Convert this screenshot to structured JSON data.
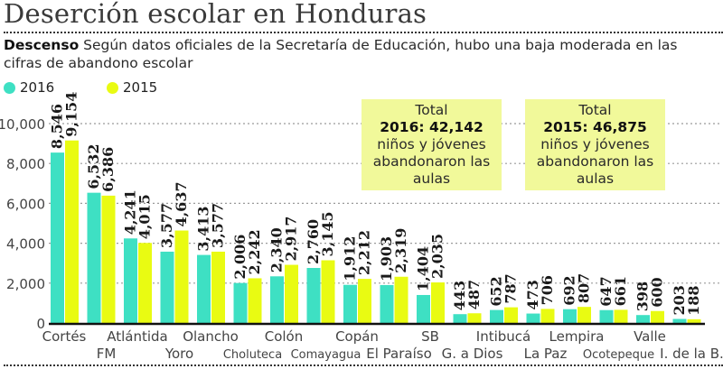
{
  "header": {
    "title": "Deserción escolar en Honduras",
    "subtitle_bold": "Descenso",
    "subtitle_text": " Según datos oficiales de la Secretaría de Educación, hubo una baja moderada en las cifras de abandono escolar"
  },
  "legend": [
    {
      "label": "2016",
      "color": "#3ee0c3"
    },
    {
      "label": "2015",
      "color": "#e9fb12"
    }
  ],
  "totals": [
    {
      "line1": "Total",
      "line2": "2016: 42,142",
      "line3": "niños y jóvenes",
      "line4": "abandonaron las",
      "line5": "aulas"
    },
    {
      "line1": "Total",
      "line2": "2015: 46,875",
      "line3": "niños y jóvenes",
      "line4": "abandonaron las",
      "line5": "aulas"
    }
  ],
  "chart_data": {
    "type": "bar",
    "title": "Deserción escolar en Honduras",
    "xlabel": "",
    "ylabel": "",
    "ylim": [
      0,
      10000
    ],
    "yticks": [
      0,
      2000,
      4000,
      6000,
      8000,
      10000
    ],
    "ytick_labels": [
      "0",
      "2,000",
      "4,000",
      "6,000",
      "8,000",
      "10,000"
    ],
    "grid": true,
    "legend_position": "top-left",
    "categories": [
      "Cortés",
      "FM",
      "Atlántida",
      "Yoro",
      "Olancho",
      "Choluteca",
      "Colón",
      "Comayagua",
      "Copán",
      "El Paraíso",
      "SB",
      "G. a Dios",
      "Intibucá",
      "La Paz",
      "Lempira",
      "Ocotepeque",
      "Valle",
      "I. de la B."
    ],
    "series": [
      {
        "name": "2016",
        "color": "#3ee0c3",
        "values": [
          8546,
          6532,
          4241,
          3577,
          3413,
          2006,
          2340,
          2760,
          1912,
          1903,
          1404,
          443,
          652,
          473,
          692,
          647,
          398,
          203
        ],
        "labels": [
          "8,546",
          "6,532",
          "4,241",
          "3,577",
          "3,413",
          "2,006",
          "2,340",
          "2,760",
          "1,912",
          "1,903",
          "1,404",
          "443",
          "652",
          "473",
          "692",
          "647",
          "398",
          "203"
        ]
      },
      {
        "name": "2015",
        "color": "#e9fb12",
        "values": [
          9154,
          6386,
          4015,
          4637,
          3577,
          2242,
          2917,
          3145,
          2212,
          2319,
          2035,
          487,
          787,
          706,
          807,
          661,
          600,
          188
        ],
        "labels": [
          "9,154",
          "6,386",
          "4,015",
          "4,637",
          "3,577",
          "2,242",
          "2,917",
          "3,145",
          "2,212",
          "2,319",
          "2,035",
          "487",
          "787",
          "706",
          "807",
          "661",
          "600",
          "188"
        ]
      }
    ]
  }
}
